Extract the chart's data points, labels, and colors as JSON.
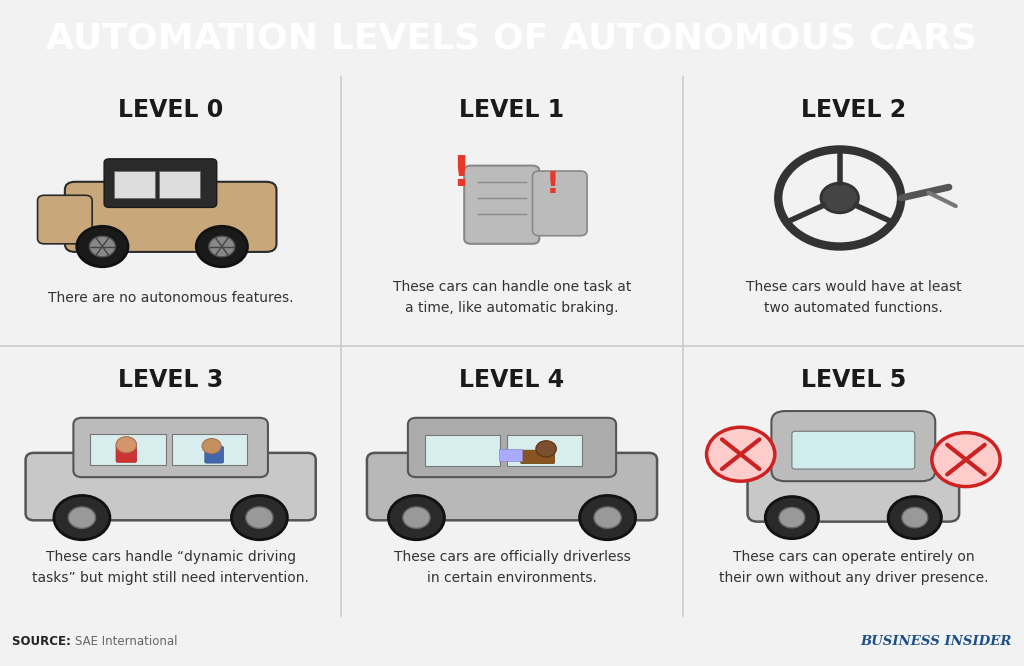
{
  "title": "AUTOMATION LEVELS OF AUTONOMOUS CARS",
  "title_bg_color": "#E8382A",
  "title_text_color": "#FFFFFF",
  "grid_bg_color": "#F2F2F2",
  "cell_bg_color": "#F5F5F5",
  "border_color": "#CCCCCC",
  "levels": [
    {
      "title": "LEVEL 0",
      "description": "There are no autonomous features."
    },
    {
      "title": "LEVEL 1",
      "description": "These cars can handle one task at\na time, like automatic braking."
    },
    {
      "title": "LEVEL 2",
      "description": "These cars would have at least\ntwo automated functions."
    },
    {
      "title": "LEVEL 3",
      "description": "These cars handle “dynamic driving\ntasks” but might still need intervention."
    },
    {
      "title": "LEVEL 4",
      "description": "These cars are officially driverless\nin certain environments."
    },
    {
      "title": "LEVEL 5",
      "description": "These cars can operate entirely on\ntheir own without any driver presence."
    }
  ],
  "source_label": "SOURCE: ",
  "source_text": "SAE International",
  "brand_text": "BUSINESS INSIDER",
  "source_color": "#666666",
  "source_label_color": "#333333",
  "brand_color": "#1B4F8A",
  "footer_bg": "#EBEBEB",
  "title_fontsize": 26,
  "level_fontsize": 17,
  "desc_fontsize": 10
}
